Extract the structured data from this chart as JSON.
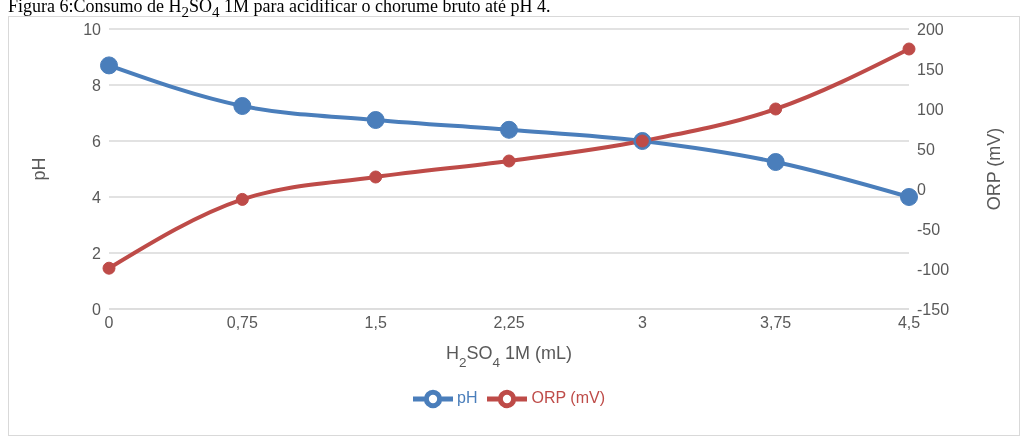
{
  "chart_data": {
    "type": "line",
    "title": "Figura 6:Consumo de H$_{2}$SO$_{4}$ 1M para acidificar o chorume bruto até pH 4.",
    "xlabel": "H$_{2}$SO$_{4}$ 1M (mL)",
    "ylabel": "pH",
    "y2label": "ORP (mV)",
    "categories": [
      "0",
      "0,75",
      "1,5",
      "2,25",
      "3",
      "3,75",
      "4,5"
    ],
    "series": [
      {
        "name": "pH",
        "color": "#4a7ebb",
        "values": [
          8.7,
          7.25,
          6.75,
          6.4,
          6.0,
          5.25,
          4.0
        ]
      },
      {
        "name": "ORP (mV)",
        "color": "#be4b48",
        "axis": "y2",
        "values": [
          -99,
          -13,
          15,
          35,
          60,
          100,
          175
        ]
      }
    ],
    "ylim": [
      0,
      10
    ],
    "yticks": [
      0,
      2,
      4,
      6,
      8,
      10
    ],
    "y2lim": [
      -150,
      200
    ],
    "y2ticks": [
      -150,
      -100,
      -50,
      0,
      50,
      100,
      150,
      200
    ],
    "grid": "y",
    "legend": "bottom",
    "marker": "circle",
    "line_style": "solid"
  }
}
